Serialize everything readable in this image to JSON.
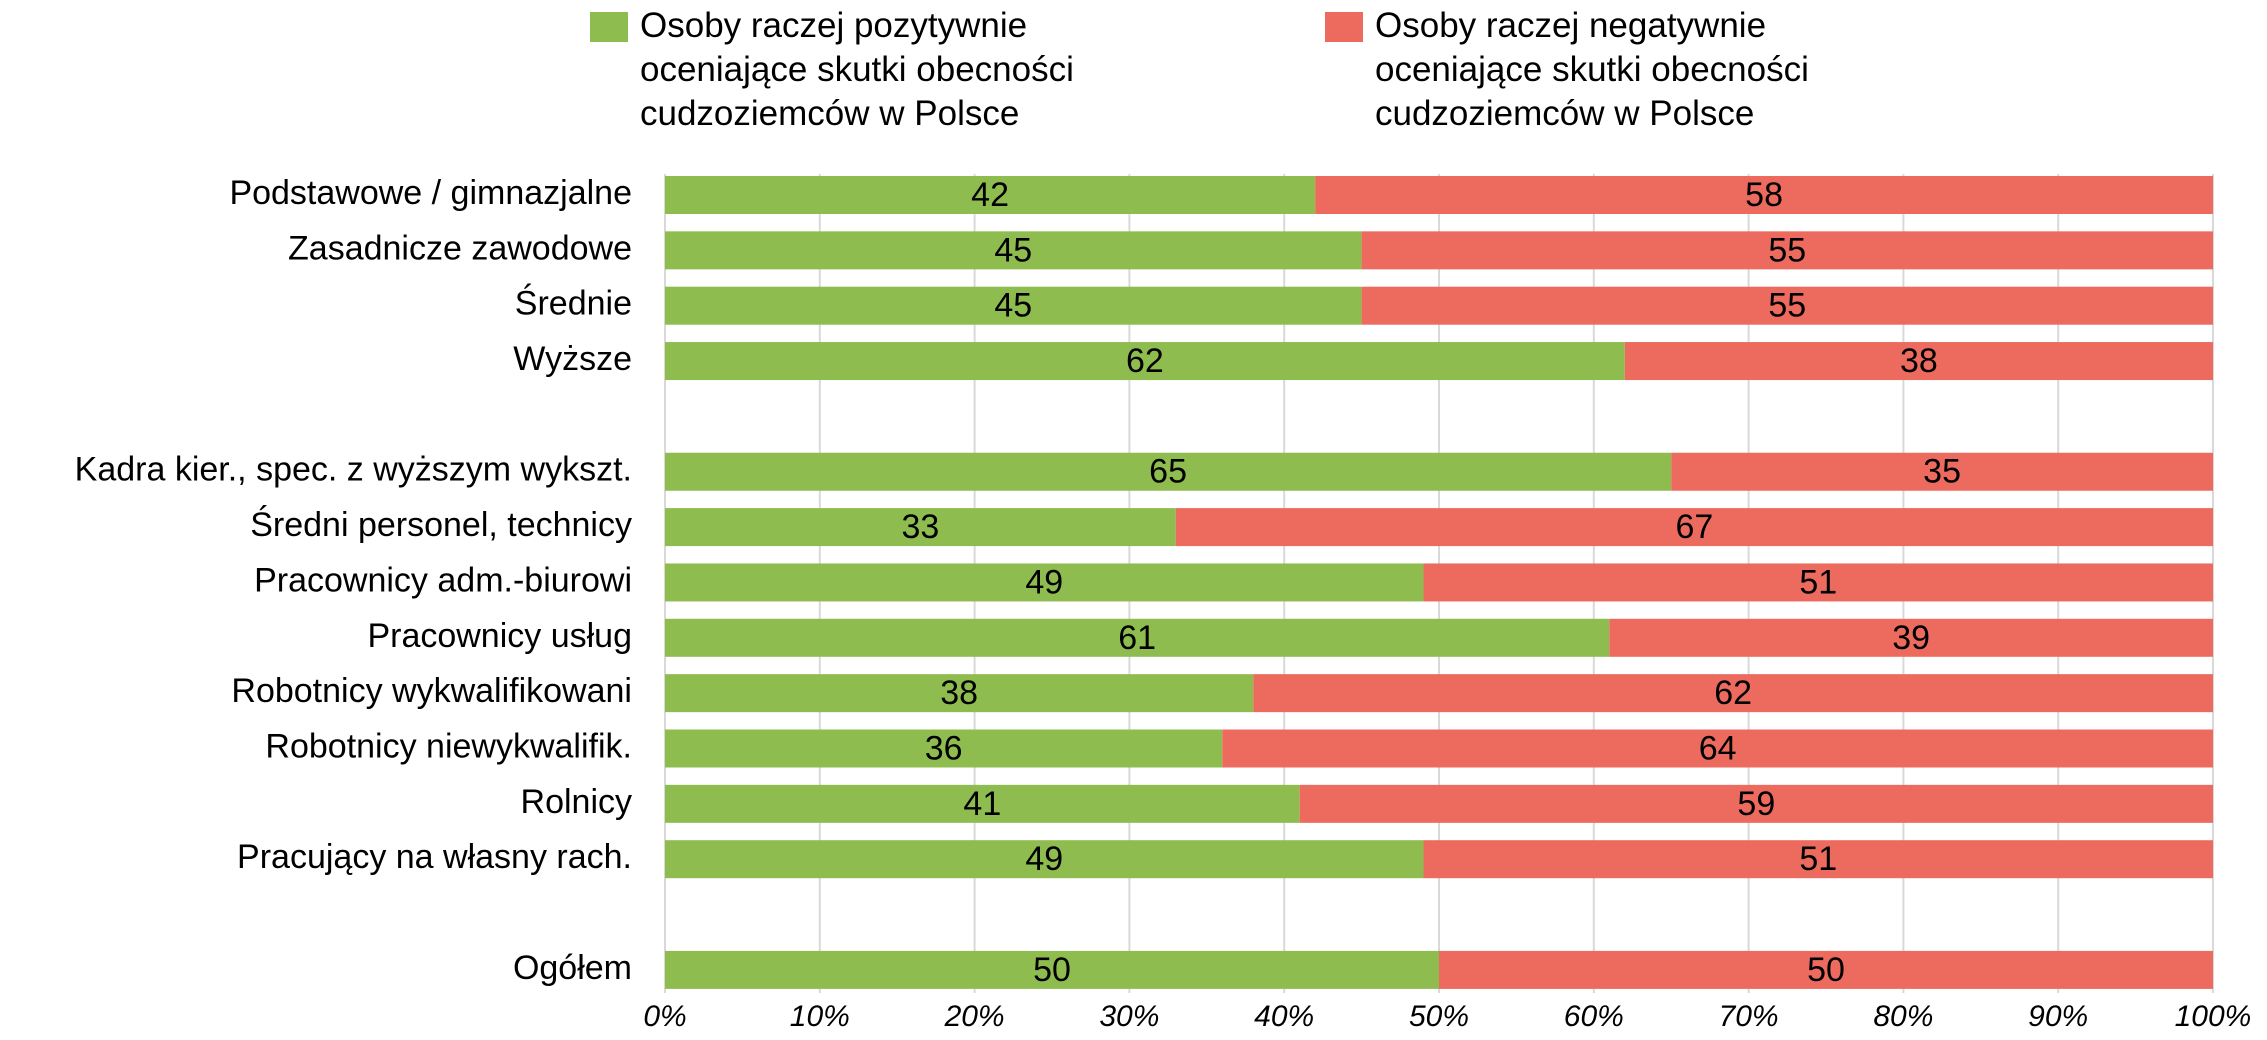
{
  "chart_data": {
    "type": "stacked-barh",
    "categories": [
      "Podstawowe / gimnazjalne",
      "Zasadnicze zawodowe",
      "Średnie",
      "Wyższe",
      null,
      "Kadra kier., spec. z wyższym wykszt.",
      "Średni personel, technicy",
      "Pracownicy adm.-biurowi",
      "Pracownicy usług",
      "Robotnicy wykwalifikowani",
      "Robotnicy niewykwalifik.",
      "Rolnicy",
      "Pracujący na własny rach.",
      null,
      "Ogółem"
    ],
    "series": [
      {
        "name": "Osoby raczej pozytywnie oceniające skutki obecności cudzoziemców w Polsce",
        "color": "#8fbc4f",
        "values": [
          42,
          45,
          45,
          62,
          null,
          65,
          33,
          49,
          61,
          38,
          36,
          41,
          49,
          null,
          50
        ]
      },
      {
        "name": "Osoby raczej negatywnie oceniające skutki obecności cudzoziemców w Polsce",
        "color": "#ec6b5e",
        "values": [
          58,
          55,
          55,
          38,
          null,
          35,
          67,
          51,
          39,
          62,
          64,
          59,
          51,
          null,
          50
        ]
      }
    ],
    "xlim": [
      0,
      100
    ],
    "xticks": [
      {
        "value": 0,
        "label": "0%"
      },
      {
        "value": 10,
        "label": "10%"
      },
      {
        "value": 20,
        "label": "20%"
      },
      {
        "value": 30,
        "label": "30%"
      },
      {
        "value": 40,
        "label": "40%"
      },
      {
        "value": 50,
        "label": "50%"
      },
      {
        "value": 60,
        "label": "60%"
      },
      {
        "value": 70,
        "label": "70%"
      },
      {
        "value": 80,
        "label": "80%"
      },
      {
        "value": 90,
        "label": "90%"
      },
      {
        "value": 100,
        "label": "100%"
      }
    ],
    "grid": true,
    "legend": "top"
  }
}
